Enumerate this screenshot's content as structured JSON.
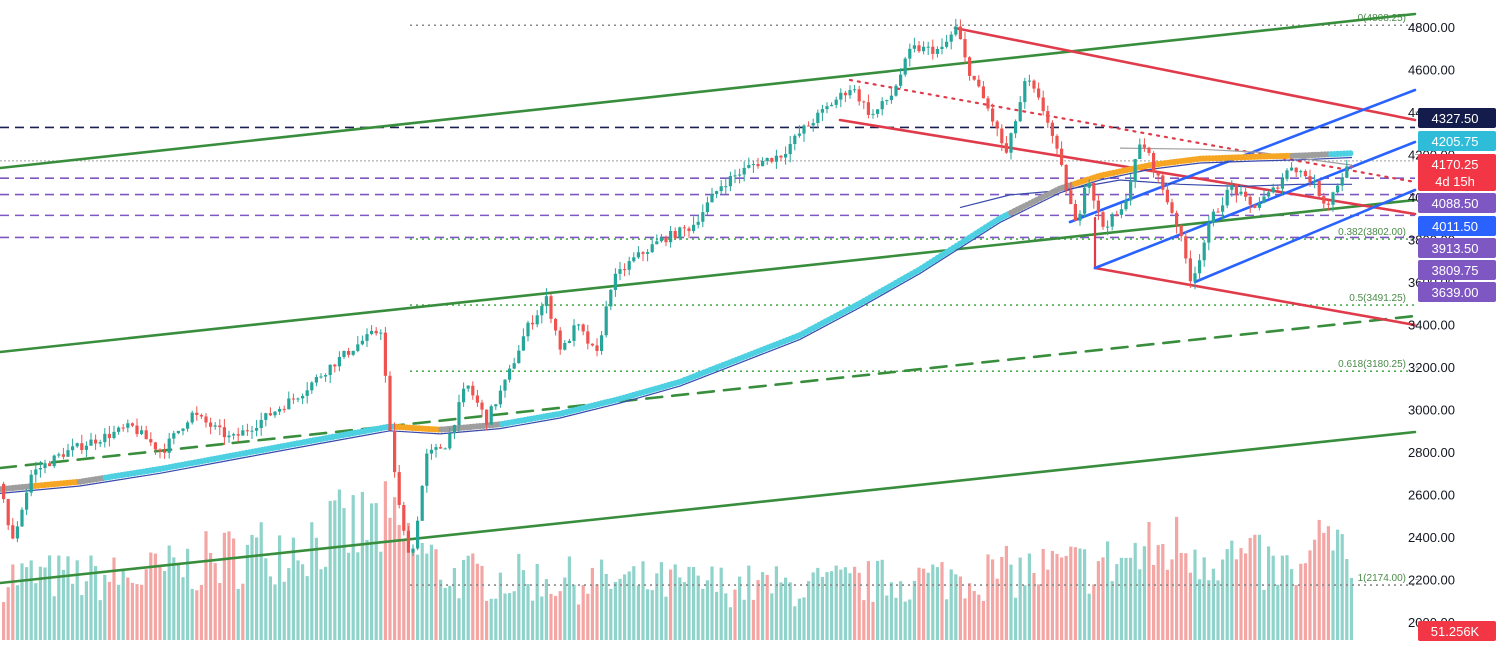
{
  "chart_data": {
    "type": "candlestick",
    "title": "",
    "price_axis": {
      "ticks": [
        "4800.00",
        "4600.00",
        "4400.00",
        "4200.00",
        "4000.00",
        "3800.00",
        "3600.00",
        "3400.00",
        "3200.00",
        "3000.00",
        "2800.00",
        "2600.00",
        "2400.00",
        "2200.00",
        "2000.00"
      ],
      "range": [
        1980,
        4890
      ]
    },
    "price_tags": [
      {
        "label": "4327.50",
        "value": 4327.5,
        "color": "#131c4a",
        "kind": "level"
      },
      {
        "label": "4205.75",
        "value": 4205.75,
        "color": "#2fbcd8",
        "kind": "indicator"
      },
      {
        "label": "4170.25",
        "value": 4170.25,
        "color": "#f23645",
        "kind": "last-price"
      },
      {
        "label": "4d 15h",
        "value": 4130,
        "color": "#f23645",
        "kind": "countdown"
      },
      {
        "label": "4088.50",
        "value": 4088.5,
        "color": "#7e57c2",
        "kind": "level"
      },
      {
        "label": "4011.50",
        "value": 4011.5,
        "color": "#2962ff",
        "kind": "level"
      },
      {
        "label": "3913.50",
        "value": 3913.5,
        "color": "#7e57c2",
        "kind": "level"
      },
      {
        "label": "3809.75",
        "value": 3809.75,
        "color": "#7e57c2",
        "kind": "level"
      },
      {
        "label": "3639.00",
        "value": 3639.0,
        "color": "#7e57c2",
        "kind": "level"
      }
    ],
    "volume_tag": {
      "label": "51.256K",
      "color": "#f23645"
    },
    "fib_levels": [
      {
        "label": "0(4808.25)",
        "value": 4808.25
      },
      {
        "label": "0.382(3802.00)",
        "value": 3802.0
      },
      {
        "label": "0.5(3491.25)",
        "value": 3491.25
      },
      {
        "label": "0.618(3180.25)",
        "value": 3180.25
      },
      {
        "label": "1(2174.00)",
        "value": 2174.0
      }
    ],
    "horizontal_levels": [
      4327.5,
      4170.25,
      4088.5,
      4011.5,
      3913.5,
      3809.75
    ],
    "price_anchors": [
      [
        0,
        2650
      ],
      [
        10,
        2360
      ],
      [
        30,
        2700
      ],
      [
        60,
        2790
      ],
      [
        90,
        2850
      ],
      [
        130,
        2920
      ],
      [
        160,
        2800
      ],
      [
        190,
        2980
      ],
      [
        230,
        2860
      ],
      [
        260,
        2950
      ],
      [
        300,
        3080
      ],
      [
        330,
        3210
      ],
      [
        360,
        3320
      ],
      [
        380,
        3380
      ],
      [
        388,
        2900
      ],
      [
        400,
        2450
      ],
      [
        410,
        2300
      ],
      [
        425,
        2780
      ],
      [
        445,
        2840
      ],
      [
        465,
        3120
      ],
      [
        485,
        2950
      ],
      [
        505,
        3140
      ],
      [
        525,
        3380
      ],
      [
        545,
        3520
      ],
      [
        560,
        3270
      ],
      [
        575,
        3400
      ],
      [
        595,
        3250
      ],
      [
        610,
        3600
      ],
      [
        630,
        3700
      ],
      [
        660,
        3800
      ],
      [
        690,
        3860
      ],
      [
        720,
        4060
      ],
      [
        750,
        4150
      ],
      [
        780,
        4200
      ],
      [
        800,
        4310
      ],
      [
        830,
        4440
      ],
      [
        850,
        4520
      ],
      [
        870,
        4380
      ],
      [
        890,
        4480
      ],
      [
        910,
        4700
      ],
      [
        940,
        4690
      ],
      [
        955,
        4800
      ],
      [
        965,
        4620
      ],
      [
        985,
        4430
      ],
      [
        1005,
        4200
      ],
      [
        1025,
        4560
      ],
      [
        1045,
        4380
      ],
      [
        1060,
        4130
      ],
      [
        1075,
        3850
      ],
      [
        1085,
        4120
      ],
      [
        1100,
        3860
      ],
      [
        1120,
        3930
      ],
      [
        1140,
        4270
      ],
      [
        1160,
        4050
      ],
      [
        1175,
        3880
      ],
      [
        1190,
        3600
      ],
      [
        1210,
        3900
      ],
      [
        1230,
        4050
      ],
      [
        1250,
        3950
      ],
      [
        1270,
        4020
      ],
      [
        1290,
        4150
      ],
      [
        1310,
        4080
      ],
      [
        1325,
        3960
      ],
      [
        1340,
        4100
      ],
      [
        1352,
        4170.25
      ]
    ],
    "volume_range": [
      0,
      100000
    ],
    "volume_anchors": [
      [
        0,
        60000
      ],
      [
        130,
        58000
      ],
      [
        200,
        72000
      ],
      [
        380,
        110000
      ],
      [
        400,
        95000
      ],
      [
        450,
        60000
      ],
      [
        600,
        55000
      ],
      [
        800,
        50000
      ],
      [
        960,
        60000
      ],
      [
        1100,
        70000
      ],
      [
        1180,
        90000
      ],
      [
        1300,
        60000
      ],
      [
        1325,
        100000
      ],
      [
        1352,
        51256
      ]
    ]
  }
}
